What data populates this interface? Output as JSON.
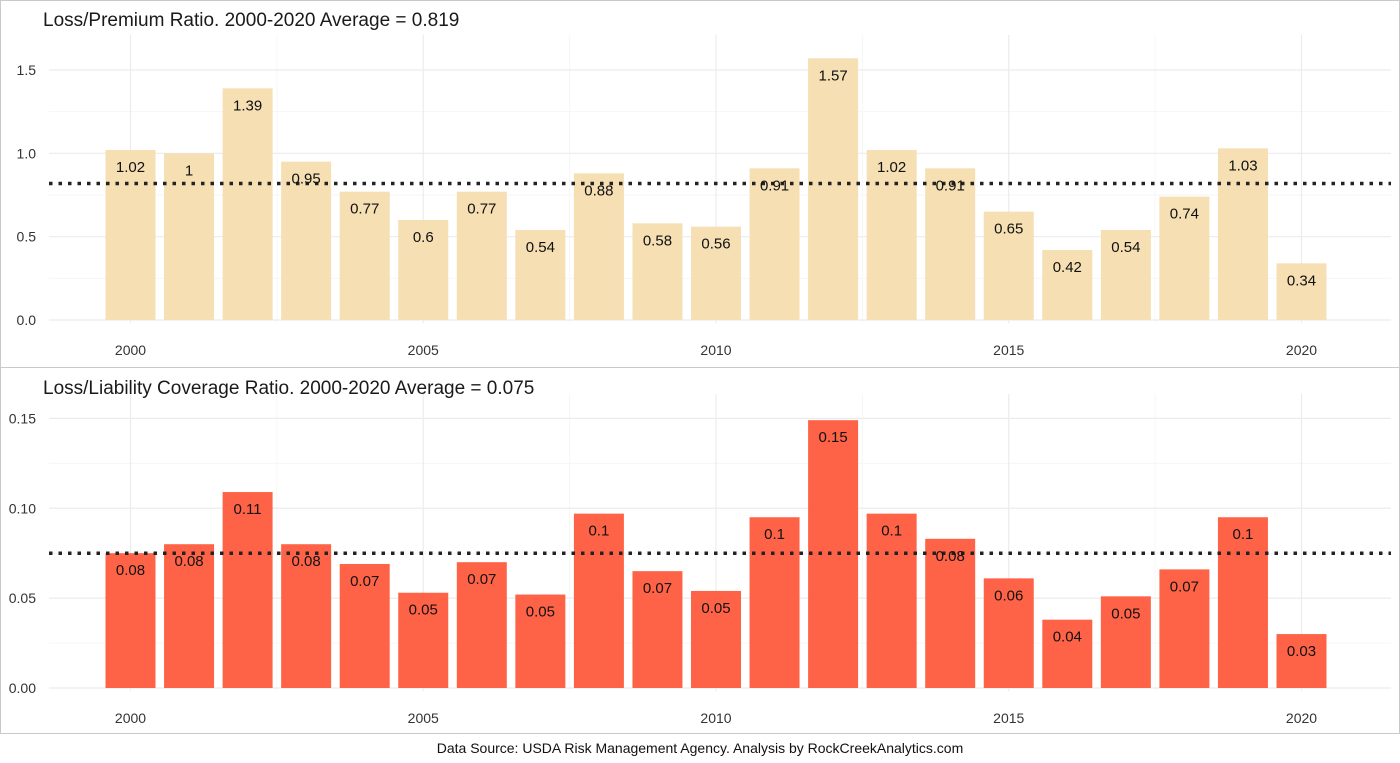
{
  "charts": [
    {
      "type": "bar",
      "title": "Loss/Premium Ratio. 2000-2020 Average = 0.819",
      "average": 0.819,
      "bar_color": "#F5DFB3",
      "avg_line_color": "#3b2c25",
      "x": [
        2000,
        2001,
        2002,
        2003,
        2004,
        2005,
        2006,
        2007,
        2008,
        2009,
        2010,
        2011,
        2012,
        2013,
        2014,
        2015,
        2016,
        2017,
        2018,
        2019,
        2020
      ],
      "values": [
        1.02,
        1.0,
        1.39,
        0.95,
        0.77,
        0.6,
        0.77,
        0.54,
        0.88,
        0.58,
        0.56,
        0.91,
        1.57,
        1.02,
        0.91,
        0.65,
        0.42,
        0.54,
        0.74,
        1.03,
        0.34
      ],
      "data_labels": [
        "1.02",
        "1",
        "1.39",
        "0.95",
        "0.77",
        "0.6",
        "0.77",
        "0.54",
        "0.88",
        "0.58",
        "0.56",
        "0.91",
        "1.57",
        "1.02",
        "0.91",
        "0.65",
        "0.42",
        "0.54",
        "0.74",
        "1.03",
        "0.34"
      ],
      "ylim": [
        0,
        1.65
      ],
      "y_ticks": [
        0.0,
        0.5,
        1.0,
        1.5
      ],
      "y_tick_labels": [
        "0.0",
        "0.5",
        "1.0",
        "1.5"
      ],
      "x_ticks": [
        2000,
        2005,
        2010,
        2015,
        2020
      ],
      "x_tick_labels": [
        "2000",
        "2005",
        "2010",
        "2015",
        "2020"
      ],
      "xlabel": "",
      "ylabel": "",
      "grid": true
    },
    {
      "type": "bar",
      "title": "Loss/Liability Coverage Ratio. 2000-2020 Average = 0.075",
      "average": 0.075,
      "bar_color": "#FF6347",
      "avg_line_color": "#111111",
      "x": [
        2000,
        2001,
        2002,
        2003,
        2004,
        2005,
        2006,
        2007,
        2008,
        2009,
        2010,
        2011,
        2012,
        2013,
        2014,
        2015,
        2016,
        2017,
        2018,
        2019,
        2020
      ],
      "values": [
        0.075,
        0.08,
        0.109,
        0.08,
        0.069,
        0.053,
        0.07,
        0.052,
        0.097,
        0.065,
        0.054,
        0.095,
        0.149,
        0.097,
        0.083,
        0.061,
        0.038,
        0.051,
        0.066,
        0.095,
        0.03
      ],
      "data_labels": [
        "0.08",
        "0.08",
        "0.11",
        "0.08",
        "0.07",
        "0.05",
        "0.07",
        "0.05",
        "0.1",
        "0.07",
        "0.05",
        "0.1",
        "0.15",
        "0.1",
        "0.08",
        "0.06",
        "0.04",
        "0.05",
        "0.07",
        "0.1",
        "0.03"
      ],
      "ylim": [
        0,
        0.158
      ],
      "y_ticks": [
        0.0,
        0.05,
        0.1,
        0.15
      ],
      "y_tick_labels": [
        "0.00",
        "0.05",
        "0.10",
        "0.15"
      ],
      "x_ticks": [
        2000,
        2005,
        2010,
        2015,
        2020
      ],
      "x_tick_labels": [
        "2000",
        "2005",
        "2010",
        "2015",
        "2020"
      ],
      "xlabel": "",
      "ylabel": "",
      "grid": true
    }
  ],
  "footer": "Data Source: USDA Risk Management Agency.  Analysis by RockCreekAnalytics.com"
}
